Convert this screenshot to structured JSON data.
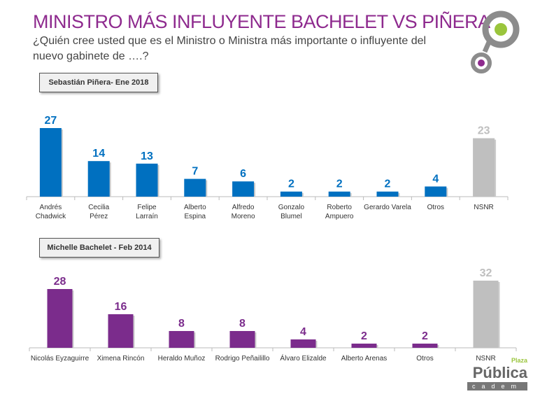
{
  "title": "MINISTRO MÁS INFLUYENTE BACHELET VS PIÑERA",
  "subtitle": "¿Quién cree usted que es el Ministro o Ministra más importante o influyente del nuevo gabinete de ….?",
  "brand": {
    "name": "Pública",
    "top": "Plaza",
    "bottom": "cadem"
  },
  "colors": {
    "title": "#8e2a8e",
    "pinera": "#0070c0",
    "bachelet": "#7b2c8c",
    "nsnr": "#bfbfbf"
  },
  "chart_data": [
    {
      "type": "bar",
      "title": "Sebastián Piñera- Ene 2018",
      "categories": [
        "Andrés Chadwick",
        "Cecilia Pérez",
        "Felipe Larraín",
        "Alberto Espina",
        "Alfredo Moreno",
        "Gonzalo Blumel",
        "Roberto Ampuero",
        "Gerardo Varela",
        "Otros",
        "NSNR"
      ],
      "values": [
        27,
        14,
        13,
        7,
        6,
        2,
        2,
        2,
        4,
        23
      ]
    },
    {
      "type": "bar",
      "title": "Michelle Bachelet - Feb 2014",
      "categories": [
        "Nicolás Eyzaguirre",
        "Ximena Rincón",
        "Heraldo Muñoz",
        "Rodrigo Peñailillo",
        "Álvaro Elizalde",
        "Alberto Arenas",
        "Otros",
        "NSNR"
      ],
      "values": [
        28,
        16,
        8,
        8,
        4,
        2,
        2,
        32
      ]
    }
  ]
}
